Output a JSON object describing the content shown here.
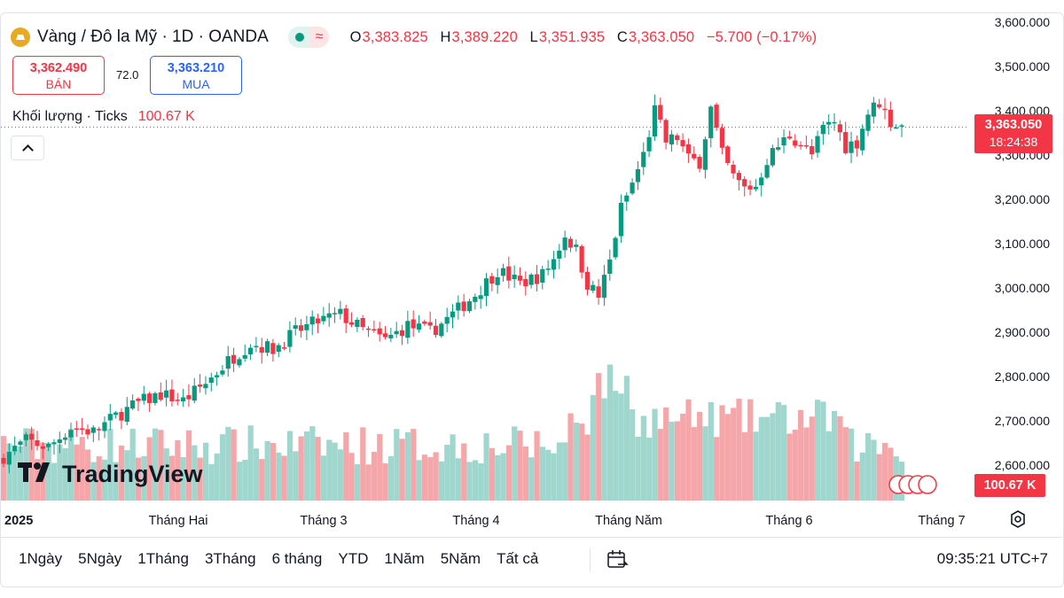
{
  "header": {
    "title": "Vàng / Đô la Mỹ · 1D · OANDA",
    "ohlc": [
      {
        "key": "O",
        "value": "3,383.825"
      },
      {
        "key": "H",
        "value": "3,389.220"
      },
      {
        "key": "L",
        "value": "3,351.935"
      },
      {
        "key": "C",
        "value": "3,363.050"
      }
    ],
    "change": "−5.700 (−0.17%)"
  },
  "trade": {
    "sell_price": "3,362.490",
    "sell_label": "BÁN",
    "spread": "72.0",
    "buy_price": "3,363.210",
    "buy_label": "MUA"
  },
  "volume_legend": {
    "label": "Khối lượng · Ticks",
    "value": "100.67 K"
  },
  "last_price_tag": {
    "price": "3,363.050",
    "countdown": "18:24:38"
  },
  "volume_tag": "100.67 K",
  "branding": {
    "logo_text": "TradingView"
  },
  "colors": {
    "up": "#089981",
    "down": "#f23645",
    "up_vol": "#9fd6cd",
    "down_vol": "#f5a6a9",
    "grid": "#f0f3fa",
    "accent": "#2962ff"
  },
  "toolbar": {
    "ranges": [
      "1Ngày",
      "5Ngày",
      "1Tháng",
      "3Tháng",
      "6 tháng",
      "YTD",
      "1Năm",
      "5Năm",
      "Tất cả"
    ],
    "clock": "09:35:21 UTC+7"
  },
  "chart_data": {
    "type": "candlestick",
    "y_axis": {
      "ticks": [
        "3,600.000",
        "3,500.000",
        "3,400.000",
        "3,300.000",
        "3,200.000",
        "3,100.000",
        "3,000.000",
        "2,900.000",
        "2,800.000",
        "2,700.000",
        "2,600.000"
      ],
      "range": [
        2540,
        3620
      ]
    },
    "x_axis": {
      "labels": [
        "2025",
        "Tháng Hai",
        "Tháng 3",
        "Tháng 4",
        "Tháng Năm",
        "Tháng 6",
        "Tháng 7"
      ]
    },
    "grid": false,
    "close_path": [
      [
        0,
        2620
      ],
      [
        4,
        2655
      ],
      [
        8,
        2640
      ],
      [
        12,
        2685
      ],
      [
        16,
        2675
      ],
      [
        20,
        2710
      ],
      [
        24,
        2740
      ],
      [
        28,
        2760
      ],
      [
        32,
        2745
      ],
      [
        36,
        2785
      ],
      [
        40,
        2835
      ],
      [
        44,
        2875
      ],
      [
        48,
        2862
      ],
      [
        52,
        2900
      ],
      [
        56,
        2925
      ],
      [
        60,
        2940
      ],
      [
        64,
        2905
      ],
      [
        68,
        2882
      ],
      [
        72,
        2915
      ],
      [
        76,
        2900
      ],
      [
        80,
        2940
      ],
      [
        84,
        2985
      ],
      [
        88,
        3040
      ],
      [
        92,
        3010
      ],
      [
        96,
        3030
      ],
      [
        98,
        3065
      ],
      [
        100,
        3120
      ],
      [
        102,
        3085
      ],
      [
        104,
        3010
      ],
      [
        106,
        2980
      ],
      [
        108,
        3060
      ],
      [
        110,
        3180
      ],
      [
        112,
        3235
      ],
      [
        114,
        3300
      ],
      [
        116,
        3400
      ],
      [
        118,
        3330
      ],
      [
        120,
        3340
      ],
      [
        122,
        3290
      ],
      [
        124,
        3285
      ],
      [
        126,
        3405
      ],
      [
        128,
        3300
      ],
      [
        130,
        3250
      ],
      [
        132,
        3225
      ],
      [
        134,
        3230
      ],
      [
        136,
        3290
      ],
      [
        138,
        3320
      ],
      [
        140,
        3345
      ],
      [
        142,
        3325
      ],
      [
        144,
        3300
      ],
      [
        146,
        3360
      ],
      [
        148,
        3375
      ],
      [
        150,
        3320
      ],
      [
        152,
        3330
      ],
      [
        154,
        3395
      ],
      [
        156,
        3420
      ],
      [
        158,
        3375
      ],
      [
        160,
        3363
      ]
    ],
    "last_value": 3363.05,
    "volume": {
      "unit": "Ticks",
      "last": "100.67 K"
    }
  }
}
